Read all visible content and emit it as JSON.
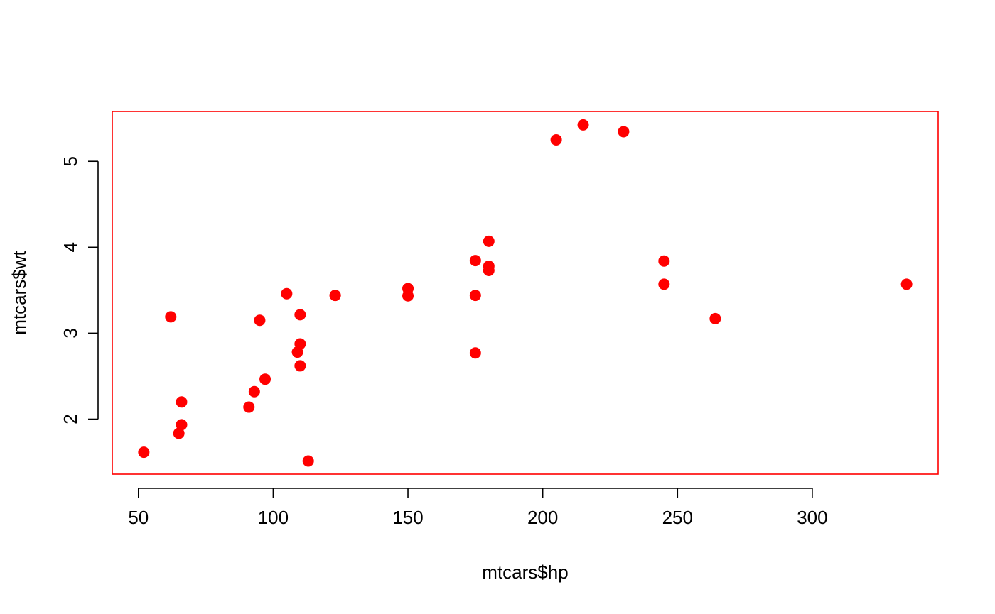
{
  "chart_data": {
    "type": "scatter",
    "title": "",
    "xlabel": "mtcars$hp",
    "ylabel": "mtcars$wt",
    "xlim": [
      40.3,
      346.7
    ],
    "ylim": [
      1.36,
      5.58
    ],
    "x_ticks": [
      50,
      100,
      150,
      200,
      250,
      300
    ],
    "y_ticks": [
      2,
      3,
      4,
      5
    ],
    "grid": false,
    "legend": "none",
    "point_color": "#ff0000",
    "box_color": "#ff0000",
    "axis_color": "#000000",
    "series": [
      {
        "x": [
          110,
          110,
          93,
          110,
          175,
          105,
          245,
          62,
          95,
          123,
          123,
          180,
          180,
          180,
          205,
          215,
          230,
          66,
          52,
          65,
          97,
          150,
          150,
          245,
          175,
          66,
          91,
          113,
          264,
          175,
          335,
          109
        ],
        "y": [
          2.62,
          2.875,
          2.32,
          3.215,
          3.44,
          3.46,
          3.57,
          3.19,
          3.15,
          3.44,
          3.44,
          4.07,
          3.73,
          3.78,
          5.25,
          5.424,
          5.345,
          2.2,
          1.615,
          1.835,
          2.465,
          3.52,
          3.435,
          3.84,
          3.845,
          1.935,
          2.14,
          1.513,
          3.17,
          2.77,
          3.57,
          2.78
        ]
      }
    ]
  }
}
